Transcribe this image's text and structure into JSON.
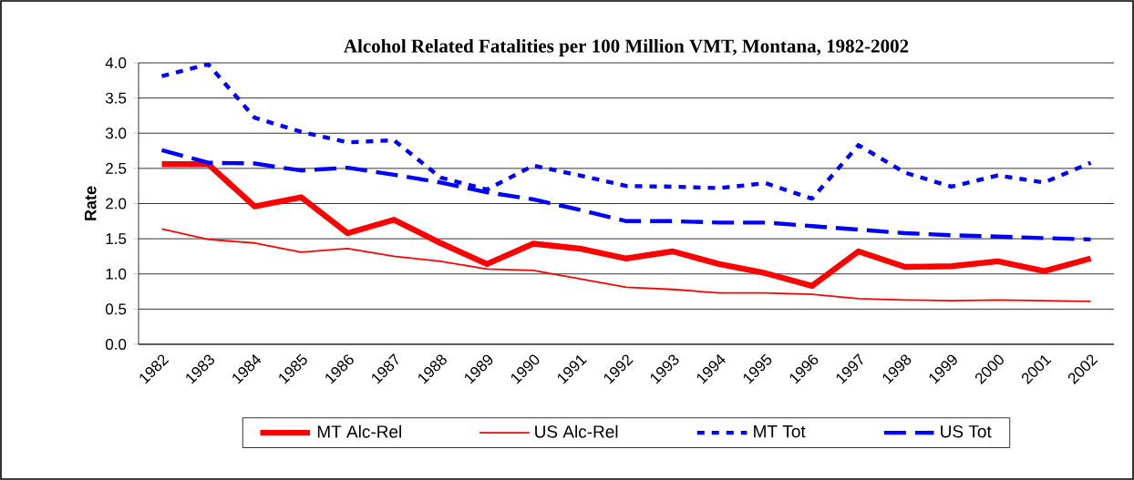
{
  "chart_data": {
    "type": "line",
    "title": "Alcohol Related Fatalities per 100 Million VMT, Montana, 1982-2002",
    "ylabel": "Rate",
    "categories": [
      "1982",
      "1983",
      "1984",
      "1985",
      "1986",
      "1987",
      "1988",
      "1989",
      "1990",
      "1991",
      "1992",
      "1993",
      "1994",
      "1995",
      "1996",
      "1997",
      "1998",
      "1999",
      "2000",
      "2001",
      "2002"
    ],
    "ylim": [
      0,
      4
    ],
    "yticks": [
      {
        "value": 0,
        "label": "0.0"
      },
      {
        "value": 0.5,
        "label": "0.5"
      },
      {
        "value": 1,
        "label": "1.0"
      },
      {
        "value": 1.5,
        "label": "1.5"
      },
      {
        "value": 2,
        "label": "2.0"
      },
      {
        "value": 2.5,
        "label": "2.5"
      },
      {
        "value": 3,
        "label": "3.0"
      },
      {
        "value": 3.5,
        "label": "3.5"
      },
      {
        "value": 4,
        "label": "4.0"
      }
    ],
    "grid": "y",
    "legend": "bottom",
    "marker": "none",
    "series": [
      {
        "name": "MT Alc-Rel",
        "color": "#ff0000",
        "line_style": "solid",
        "values": [
          2.56,
          2.56,
          1.96,
          2.09,
          1.58,
          1.77,
          1.44,
          1.14,
          1.43,
          1.36,
          1.22,
          1.32,
          1.14,
          1.01,
          0.83,
          1.32,
          1.1,
          1.11,
          1.18,
          1.04,
          1.22
        ]
      },
      {
        "name": "US Alc-Rel",
        "color": "#ff0000",
        "line_style": "solid",
        "values": [
          1.64,
          1.49,
          1.44,
          1.31,
          1.36,
          1.25,
          1.18,
          1.07,
          1.05,
          0.93,
          0.81,
          0.78,
          0.73,
          0.73,
          0.71,
          0.65,
          0.63,
          0.62,
          0.63,
          0.62,
          0.61
        ]
      },
      {
        "name": "MT Tot",
        "color": "#0000ff",
        "line_style": "dotted",
        "values": [
          3.81,
          3.98,
          3.22,
          3.02,
          2.87,
          2.9,
          2.37,
          2.2,
          2.54,
          2.4,
          2.25,
          2.24,
          2.22,
          2.29,
          2.07,
          2.83,
          2.44,
          2.24,
          2.4,
          2.3,
          2.58
        ]
      },
      {
        "name": "US Tot",
        "color": "#0000ff",
        "line_style": "dashed",
        "values": [
          2.76,
          2.58,
          2.57,
          2.47,
          2.51,
          2.41,
          2.3,
          2.16,
          2.06,
          1.91,
          1.75,
          1.75,
          1.73,
          1.73,
          1.68,
          1.63,
          1.58,
          1.55,
          1.53,
          1.51,
          1.49
        ]
      }
    ]
  }
}
